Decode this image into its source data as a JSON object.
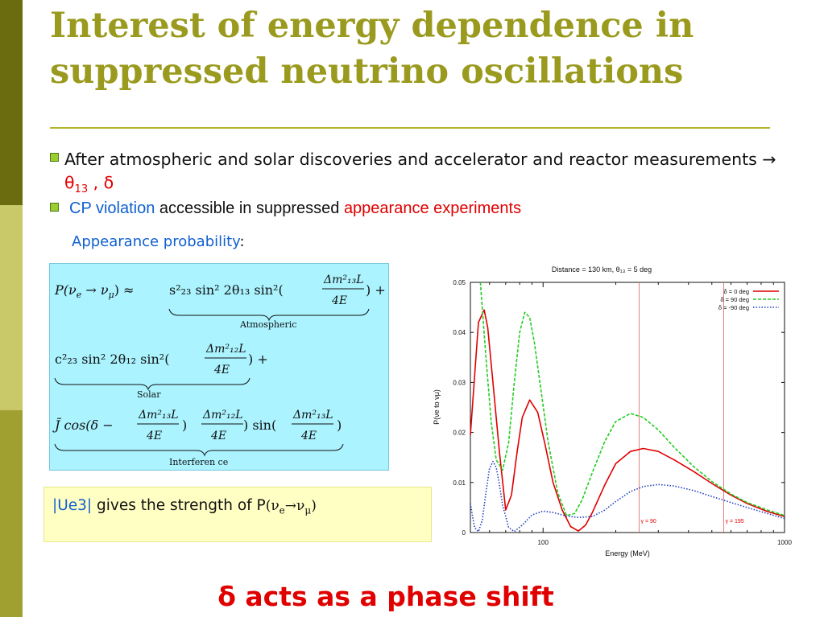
{
  "title": {
    "line1": "Interest of energy dependence in",
    "line2": "suppressed neutrino oscillations"
  },
  "bullets": {
    "b1_text": "After atmospheric and solar discoveries and accelerator and reactor measurements → ",
    "b1_theta": "θ",
    "b1_sub": "13",
    "b1_tail": " , δ",
    "b2_cp": "CP violation",
    "b2_mid": " accessible in suppressed ",
    "b2_app": "appearance experiments"
  },
  "appearance_label": "Appearance probability",
  "appearance_colon": ":",
  "formula": {
    "lhs": "P(ν",
    "lhs_e": "e",
    "lhs_arrow": " → ν",
    "lhs_mu": "μ",
    "lhs_close": ") ≈",
    "atm_term": "s²₂₃ sin² 2θ₁₃ sin²(",
    "dm13": "Δm²₁₃L",
    "dm12": "Δm²₁₂L",
    "fourE": "4E",
    "plus": ") +",
    "atm_label": "Atmospheric",
    "sol_term": "c²₂₃ sin² 2θ₁₂ sin²(",
    "sol_label": "Solar",
    "int_term": "J̃ cos(δ −",
    "int_sin": ") sin(",
    "int_close": ")",
    "int_label": "Interferen ce"
  },
  "ue3": {
    "label": "|Ue3|",
    "text": " gives the strength of P",
    "nu": "(ν",
    "e": "e",
    "arrow": "→ν",
    "mu": "μ",
    "close": ")"
  },
  "shift_text": "δ acts as a phase shift",
  "chart_data": {
    "type": "line",
    "title": "Distance = 130 km, θ₁₃ = 5 deg",
    "xlabel": "Energy (MeV)",
    "ylabel": "P(νe to νμ)",
    "xscale": "log",
    "xlim": [
      50,
      1000
    ],
    "ylim": [
      0,
      0.05
    ],
    "x_ticks": [
      "100",
      "1000"
    ],
    "y_ticks": [
      "0",
      "0.01",
      "0.02",
      "0.03",
      "0.04",
      "0.05"
    ],
    "legend_position": "top-right",
    "series": [
      {
        "name": "δ = 0 deg",
        "color": "#e00000",
        "dash": "solid",
        "x": [
          50,
          54,
          57,
          59,
          62,
          66,
          70,
          74,
          78,
          82,
          88,
          95,
          102,
          110,
          120,
          130,
          140,
          150,
          160,
          180,
          200,
          230,
          260,
          300,
          350,
          420,
          500,
          600,
          700,
          850,
          1000
        ],
        "y": [
          0.0195,
          0.042,
          0.0445,
          0.041,
          0.03,
          0.016,
          0.0045,
          0.0075,
          0.016,
          0.023,
          0.0265,
          0.024,
          0.0175,
          0.01,
          0.0045,
          0.0012,
          0.0003,
          0.0015,
          0.004,
          0.0095,
          0.0138,
          0.0162,
          0.0168,
          0.0162,
          0.0145,
          0.0122,
          0.0098,
          0.0075,
          0.0058,
          0.0042,
          0.0032
        ]
      },
      {
        "name": "δ = 90 deg",
        "color": "#22cc22",
        "dash": "dashed",
        "x": [
          55,
          58,
          61,
          64,
          68,
          72,
          76,
          80,
          84,
          88,
          92,
          97,
          105,
          115,
          125,
          135,
          145,
          160,
          180,
          200,
          230,
          260,
          300,
          350,
          420,
          500,
          600,
          700,
          850,
          1000
        ],
        "y": [
          0.05,
          0.035,
          0.022,
          0.0145,
          0.0125,
          0.018,
          0.03,
          0.04,
          0.044,
          0.043,
          0.038,
          0.03,
          0.018,
          0.008,
          0.0034,
          0.0038,
          0.0065,
          0.012,
          0.0182,
          0.0222,
          0.0238,
          0.023,
          0.0205,
          0.017,
          0.0132,
          0.0102,
          0.0077,
          0.006,
          0.0045,
          0.0034
        ]
      },
      {
        "name": "δ = -90 deg",
        "color": "#2040c0",
        "dash": "dotted",
        "x": [
          50,
          52,
          54,
          56,
          58,
          60,
          62,
          64,
          66,
          68,
          72,
          76,
          82,
          90,
          100,
          110,
          125,
          140,
          160,
          180,
          200,
          230,
          260,
          300,
          350,
          420,
          500,
          600,
          700,
          850,
          1000
        ],
        "y": [
          0.0058,
          0.001,
          0.0002,
          0.0025,
          0.008,
          0.0128,
          0.0142,
          0.013,
          0.0095,
          0.0055,
          0.001,
          0.0002,
          0.0015,
          0.0035,
          0.0043,
          0.004,
          0.0033,
          0.003,
          0.0032,
          0.0045,
          0.0062,
          0.0082,
          0.0092,
          0.0096,
          0.0093,
          0.0084,
          0.0072,
          0.006,
          0.005,
          0.0038,
          0.0028
        ]
      }
    ],
    "annotations": [
      {
        "x": 250,
        "label": "γ = 90"
      },
      {
        "x": 560,
        "label": "γ = 195"
      }
    ]
  }
}
